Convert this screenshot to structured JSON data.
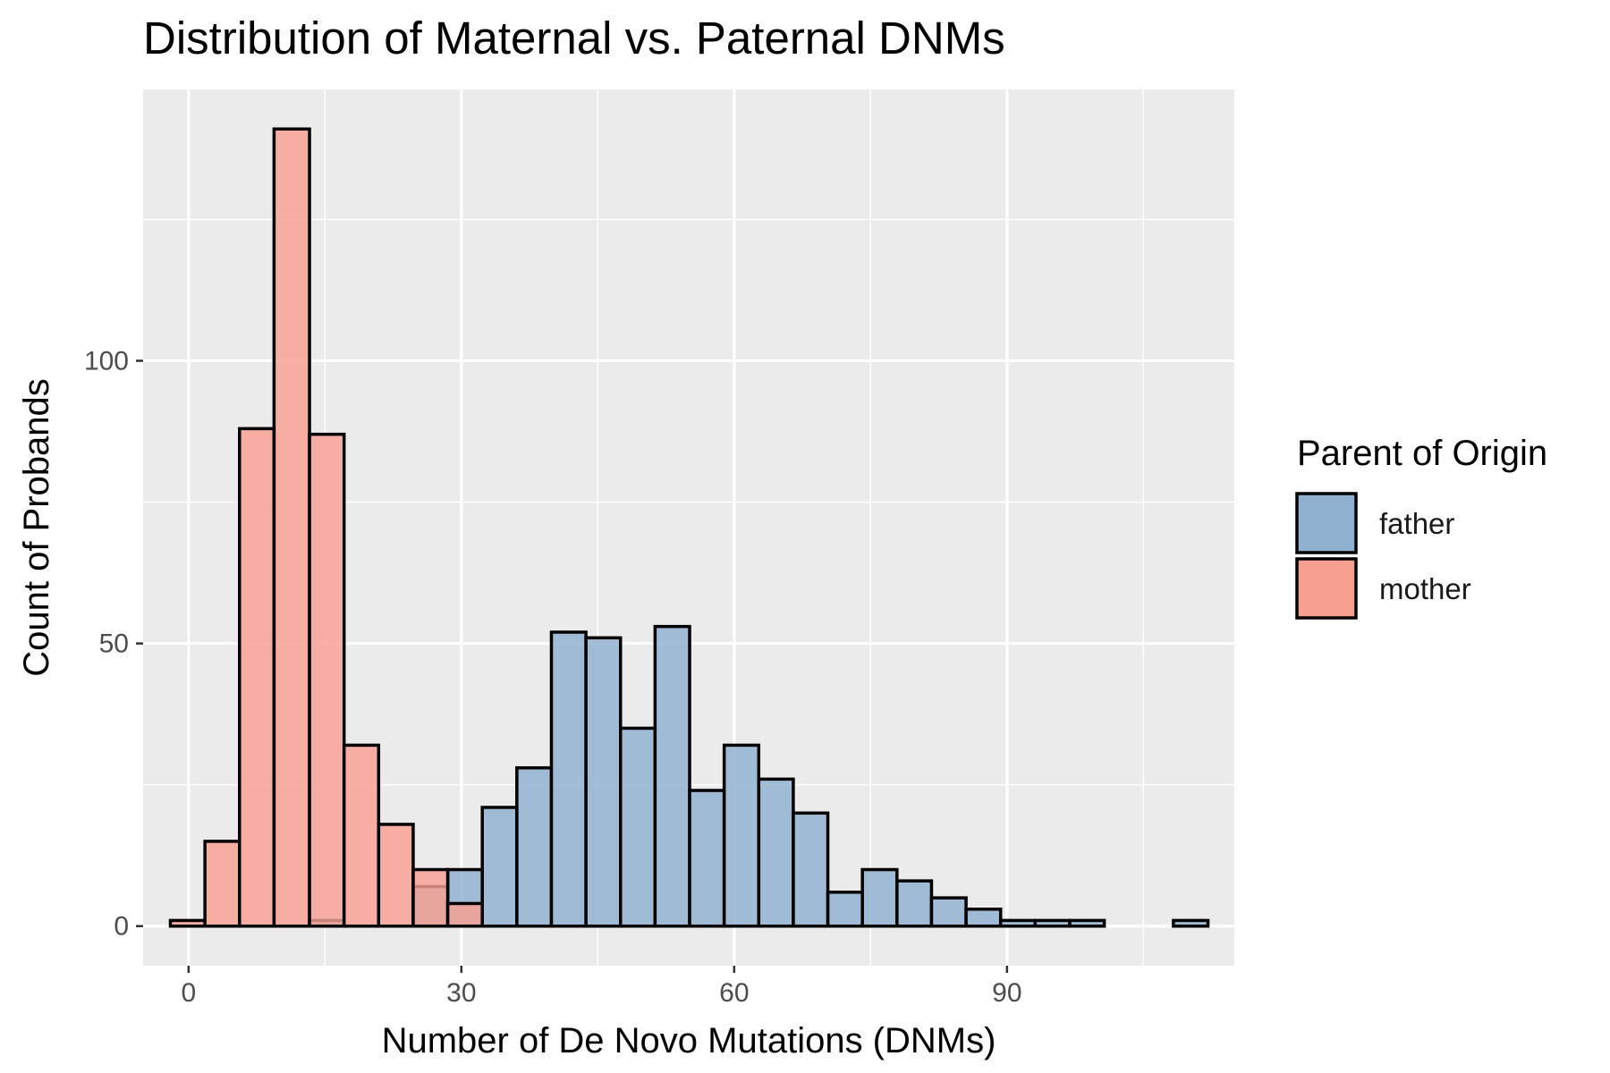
{
  "chart_data": {
    "type": "histogram",
    "title": "Distribution of Maternal vs. Paternal DNMs",
    "xlabel": "Number of De Novo Mutations (DNMs)",
    "ylabel": "Count of Probands",
    "xlim": [
      -5,
      115
    ],
    "ylim": [
      -7,
      148
    ],
    "x_ticks": [
      0,
      30,
      60,
      90
    ],
    "y_ticks": [
      0,
      50,
      100
    ],
    "bin_width": 3.8,
    "grid": true,
    "legend": {
      "title": "Parent of Origin",
      "position": "right",
      "entries": [
        {
          "label": "father",
          "color": "#8fb0cf"
        },
        {
          "label": "mother",
          "color": "#f7a090"
        }
      ]
    },
    "series": [
      {
        "name": "father",
        "color": "#8fb0cf",
        "bins": [
          {
            "x0": 13.3,
            "x1": 17.1,
            "count": 1
          },
          {
            "x0": 24.7,
            "x1": 28.5,
            "count": 7
          },
          {
            "x0": 28.5,
            "x1": 32.3,
            "count": 10
          },
          {
            "x0": 32.3,
            "x1": 36.1,
            "count": 21
          },
          {
            "x0": 36.1,
            "x1": 39.9,
            "count": 28
          },
          {
            "x0": 39.9,
            "x1": 43.7,
            "count": 52
          },
          {
            "x0": 43.7,
            "x1": 47.5,
            "count": 51
          },
          {
            "x0": 47.5,
            "x1": 51.3,
            "count": 35
          },
          {
            "x0": 51.3,
            "x1": 55.1,
            "count": 53
          },
          {
            "x0": 55.1,
            "x1": 58.9,
            "count": 24
          },
          {
            "x0": 58.9,
            "x1": 62.7,
            "count": 32
          },
          {
            "x0": 62.7,
            "x1": 66.5,
            "count": 26
          },
          {
            "x0": 66.5,
            "x1": 70.3,
            "count": 20
          },
          {
            "x0": 70.3,
            "x1": 74.1,
            "count": 6
          },
          {
            "x0": 74.1,
            "x1": 77.9,
            "count": 10
          },
          {
            "x0": 77.9,
            "x1": 81.7,
            "count": 8
          },
          {
            "x0": 81.7,
            "x1": 85.5,
            "count": 5
          },
          {
            "x0": 85.5,
            "x1": 89.3,
            "count": 3
          },
          {
            "x0": 89.3,
            "x1": 93.1,
            "count": 1
          },
          {
            "x0": 93.1,
            "x1": 96.9,
            "count": 1
          },
          {
            "x0": 96.9,
            "x1": 100.7,
            "count": 1
          },
          {
            "x0": 100.7,
            "x1": 104.5,
            "count": 0
          },
          {
            "x0": 104.5,
            "x1": 108.3,
            "count": 0
          },
          {
            "x0": 108.3,
            "x1": 112.1,
            "count": 1
          }
        ]
      },
      {
        "name": "mother",
        "color": "#f7a090",
        "bins": [
          {
            "x0": -2.0,
            "x1": 1.8,
            "count": 1
          },
          {
            "x0": 1.8,
            "x1": 5.6,
            "count": 15
          },
          {
            "x0": 5.6,
            "x1": 9.4,
            "count": 88
          },
          {
            "x0": 9.4,
            "x1": 13.3,
            "count": 141
          },
          {
            "x0": 13.3,
            "x1": 17.1,
            "count": 87
          },
          {
            "x0": 17.1,
            "x1": 20.9,
            "count": 32
          },
          {
            "x0": 20.9,
            "x1": 24.7,
            "count": 18
          },
          {
            "x0": 24.7,
            "x1": 28.5,
            "count": 10
          },
          {
            "x0": 28.5,
            "x1": 32.3,
            "count": 4
          }
        ]
      }
    ]
  }
}
